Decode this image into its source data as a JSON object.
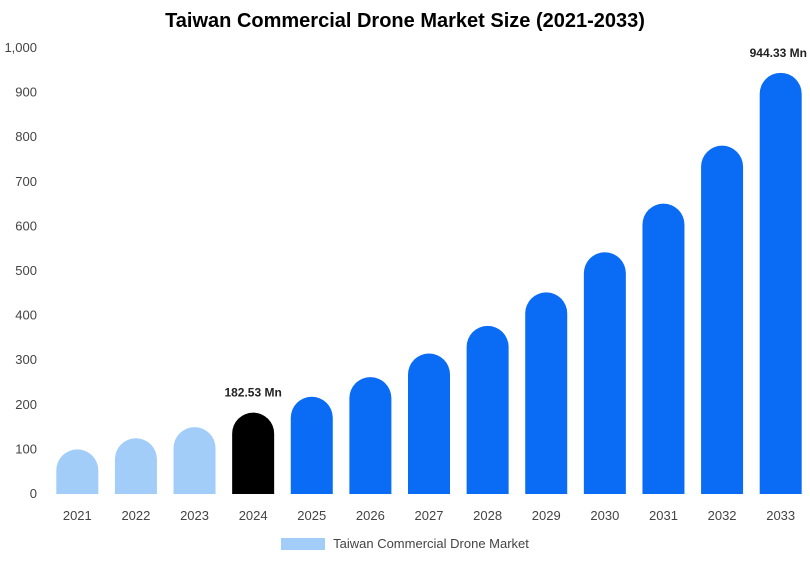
{
  "chart_data": {
    "type": "bar",
    "title": "Taiwan Commercial Drone Market Size (2021-2033)",
    "categories": [
      "2021",
      "2022",
      "2023",
      "2024",
      "2025",
      "2026",
      "2027",
      "2028",
      "2029",
      "2030",
      "2031",
      "2032",
      "2033"
    ],
    "series": [
      {
        "name": "Taiwan Commercial Drone Market",
        "values": [
          100,
          125,
          150,
          182.53,
          218,
          262,
          315,
          377,
          452,
          542,
          651,
          781,
          944.33
        ]
      }
    ],
    "ylim": [
      0,
      1000
    ],
    "yticks": [
      "0",
      "100",
      "200",
      "300",
      "400",
      "500",
      "600",
      "700",
      "800",
      "900",
      "1,000"
    ],
    "data_labels": [
      {
        "index": 3,
        "text": "182.53 Mn"
      },
      {
        "index": 12,
        "text": "944.33 Mn"
      }
    ],
    "grid": false,
    "legend_position": "bottom",
    "colors": {
      "historical": "#a3cdf9",
      "current": "#000000",
      "forecast": "#0a6cf5",
      "legend": "#a3cdf9"
    },
    "highlight_index": 3
  }
}
